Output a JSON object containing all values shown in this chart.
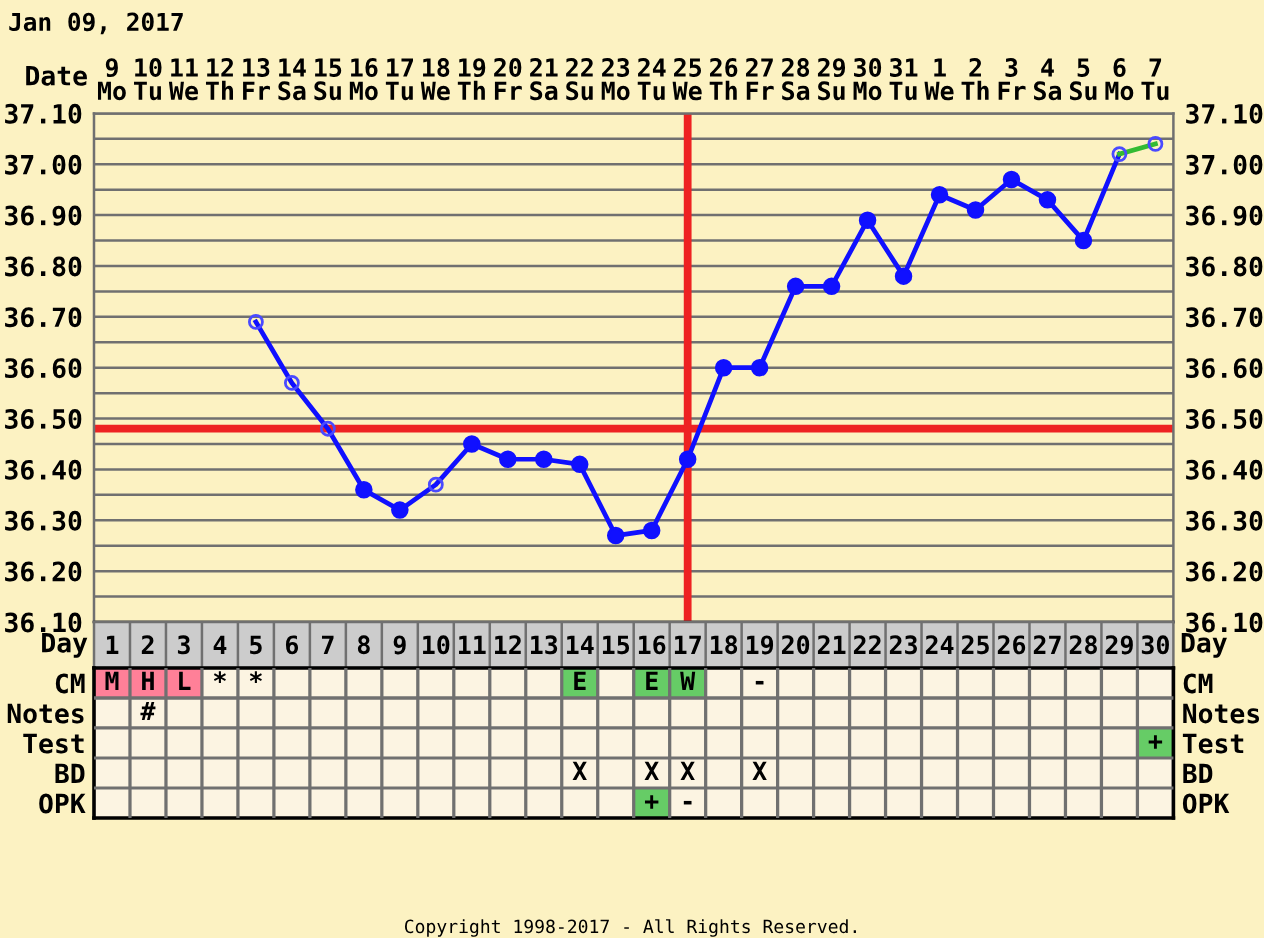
{
  "chart_data": [
    {
      "type": "line",
      "title": "Jan 09, 2017",
      "xlabel": "Date",
      "categories": [
        "9\nMo",
        "10\nTu",
        "11\nWe",
        "12\nTh",
        "13\nFr",
        "14\nSa",
        "15\nSu",
        "16\nMo",
        "17\nTu",
        "18\nWe",
        "19\nTh",
        "20\nFr",
        "21\nSa",
        "22\nSu",
        "23\nMo",
        "24\nTu",
        "25\nWe",
        "26\nTh",
        "27\nFr",
        "28\nSa",
        "29\nSu",
        "30\nMo",
        "31\nTu",
        "1\nWe",
        "2\nTh",
        "3\nFr",
        "4\nSa",
        "5\nSu",
        "6\nMo",
        "7\nTu"
      ],
      "series": [
        {
          "type": "line",
          "color": "#1010ff",
          "marker": "none",
          "values": [
            null,
            null,
            null,
            null,
            36.69,
            36.57,
            36.48,
            36.36,
            null,
            null,
            null,
            null,
            null,
            null,
            null,
            null,
            null,
            null,
            null,
            null,
            null,
            null,
            null,
            null,
            null,
            null,
            null,
            36.85,
            37.02,
            null
          ]
        },
        {
          "type": "line",
          "color": "#1010ff",
          "marker": "none",
          "values": [
            null,
            null,
            null,
            null,
            null,
            null,
            null,
            null,
            36.32,
            36.37,
            36.45,
            null,
            null,
            null,
            null,
            null,
            null,
            null,
            null,
            null,
            null,
            null,
            null,
            null,
            null,
            null,
            null,
            null,
            null,
            null
          ]
        },
        {
          "type": "line",
          "color": "#1010ff",
          "marker": "circle",
          "values": [
            null,
            null,
            null,
            null,
            null,
            null,
            null,
            36.36,
            36.32,
            null,
            36.45,
            36.42,
            36.42,
            36.41,
            36.27,
            36.28,
            36.42,
            36.6,
            36.6,
            36.76,
            36.76,
            36.89,
            36.78,
            36.94,
            36.91,
            36.97,
            36.93,
            36.85,
            null,
            null
          ]
        },
        {
          "type": "line",
          "color": "#33bb33",
          "marker": "none",
          "values": [
            null,
            null,
            null,
            null,
            null,
            null,
            null,
            null,
            null,
            null,
            null,
            null,
            null,
            null,
            null,
            null,
            null,
            null,
            null,
            null,
            null,
            null,
            null,
            null,
            null,
            null,
            null,
            null,
            37.02,
            37.04
          ]
        },
        {
          "type": "scatter",
          "color": "#4a4aff",
          "marker": "circle",
          "values": [
            null,
            null,
            null,
            null,
            36.69,
            36.57,
            36.48,
            null,
            null,
            36.37,
            null,
            null,
            null,
            null,
            null,
            null,
            null,
            null,
            null,
            null,
            null,
            null,
            null,
            null,
            null,
            null,
            null,
            null,
            37.02,
            37.04
          ]
        }
      ],
      "ylim": [
        36.1,
        37.1
      ],
      "yticks": [
        {
          "value": 36.1,
          "label": "36.10"
        },
        {
          "value": 36.15,
          "label": null
        },
        {
          "value": 36.2,
          "label": "36.20"
        },
        {
          "value": 36.25,
          "label": null
        },
        {
          "value": 36.3,
          "label": "36.30"
        },
        {
          "value": 36.35,
          "label": null
        },
        {
          "value": 36.4,
          "label": "36.40"
        },
        {
          "value": 36.45,
          "label": null
        },
        {
          "value": 36.5,
          "label": "36.50"
        },
        {
          "value": 36.55,
          "label": null
        },
        {
          "value": 36.6,
          "label": "36.60"
        },
        {
          "value": 36.65,
          "label": null
        },
        {
          "value": 36.7,
          "label": "36.70"
        },
        {
          "value": 36.75,
          "label": null
        },
        {
          "value": 36.8,
          "label": "36.80"
        },
        {
          "value": 36.85,
          "label": null
        },
        {
          "value": 36.9,
          "label": "36.90"
        },
        {
          "value": 36.95,
          "label": null
        },
        {
          "value": 37.0,
          "label": "37.00"
        },
        {
          "value": 37.05,
          "label": null
        },
        {
          "value": 37.1,
          "label": "37.10"
        }
      ],
      "y2lim": [
        36.1,
        37.1
      ],
      "y2ticks": [
        {
          "value": 36.1,
          "label": "36.10"
        },
        {
          "value": 36.15,
          "label": null
        },
        {
          "value": 36.2,
          "label": "36.20"
        },
        {
          "value": 36.25,
          "label": null
        },
        {
          "value": 36.3,
          "label": "36.30"
        },
        {
          "value": 36.35,
          "label": null
        },
        {
          "value": 36.4,
          "label": "36.40"
        },
        {
          "value": 36.45,
          "label": null
        },
        {
          "value": 36.5,
          "label": "36.50"
        },
        {
          "value": 36.55,
          "label": null
        },
        {
          "value": 36.6,
          "label": "36.60"
        },
        {
          "value": 36.65,
          "label": null
        },
        {
          "value": 36.7,
          "label": "36.70"
        },
        {
          "value": 36.75,
          "label": null
        },
        {
          "value": 36.8,
          "label": "36.80"
        },
        {
          "value": 36.85,
          "label": null
        },
        {
          "value": 36.9,
          "label": "36.90"
        },
        {
          "value": 36.95,
          "label": null
        },
        {
          "value": 37.0,
          "label": "37.00"
        },
        {
          "value": 37.05,
          "label": null
        },
        {
          "value": 37.1,
          "label": "37.10"
        }
      ],
      "ref_lines": [
        {
          "axis": "y",
          "value": 36.48,
          "color": "#ee2222"
        },
        {
          "axis": "x",
          "value": "25\nWe",
          "color": "#ee2222"
        }
      ],
      "grid": true
    },
    {
      "type": "heatmap",
      "xlabel": "Day",
      "grid": true,
      "categories": [
        "1",
        "2",
        "3",
        "4",
        "5",
        "6",
        "7",
        "8",
        "9",
        "10",
        "11",
        "12",
        "13",
        "14",
        "15",
        "16",
        "17",
        "18",
        "19",
        "20",
        "21",
        "22",
        "23",
        "24",
        "25",
        "26",
        "27",
        "28",
        "29",
        "30"
      ],
      "y_categories": [
        "CM",
        "Notes",
        "Test",
        "BD",
        "OPK"
      ],
      "y2_categories": [
        "CM",
        "Notes",
        "Test",
        "BD",
        "OPK"
      ],
      "cells": [
        [
          null,
          null,
          null,
          null,
          null,
          null,
          null,
          null,
          null,
          null,
          null,
          null,
          null,
          null,
          null,
          null,
          null,
          null,
          null,
          null,
          null,
          null,
          null,
          null,
          null,
          null,
          null,
          null,
          null,
          null
        ],
        [
          null,
          null,
          null,
          null,
          null,
          null,
          null,
          null,
          null,
          null,
          null,
          null,
          null,
          null,
          null,
          null,
          null,
          null,
          null,
          null,
          null,
          null,
          null,
          null,
          null,
          null,
          null,
          null,
          null,
          null
        ],
        [
          null,
          null,
          null,
          null,
          null,
          null,
          null,
          null,
          null,
          null,
          null,
          null,
          null,
          null,
          null,
          null,
          null,
          null,
          null,
          null,
          null,
          null,
          null,
          null,
          null,
          null,
          null,
          null,
          null,
          null
        ],
        [
          null,
          null,
          null,
          null,
          null,
          null,
          null,
          null,
          null,
          null,
          null,
          null,
          null,
          null,
          null,
          null,
          null,
          null,
          null,
          null,
          null,
          null,
          null,
          null,
          null,
          null,
          null,
          null,
          null,
          null
        ],
        [
          null,
          null,
          null,
          null,
          null,
          null,
          null,
          null,
          null,
          null,
          null,
          null,
          null,
          null,
          null,
          null,
          null,
          null,
          null,
          null,
          null,
          null,
          null,
          null,
          null,
          null,
          null,
          null,
          null,
          null
        ]
      ],
      "cell_labels": [
        [
          "M",
          "H",
          "L",
          "*",
          "*",
          null,
          null,
          null,
          null,
          null,
          null,
          null,
          null,
          "E",
          null,
          "E",
          "W",
          null,
          "-",
          null,
          null,
          null,
          null,
          null,
          null,
          null,
          null,
          null,
          null,
          null
        ],
        [
          null,
          "#",
          null,
          null,
          null,
          null,
          null,
          null,
          null,
          null,
          null,
          null,
          null,
          null,
          null,
          null,
          null,
          null,
          null,
          null,
          null,
          null,
          null,
          null,
          null,
          null,
          null,
          null,
          null,
          null
        ],
        [
          null,
          null,
          null,
          null,
          null,
          null,
          null,
          null,
          null,
          null,
          null,
          null,
          null,
          null,
          null,
          null,
          null,
          null,
          null,
          null,
          null,
          null,
          null,
          null,
          null,
          null,
          null,
          null,
          null,
          "+"
        ],
        [
          null,
          null,
          null,
          null,
          null,
          null,
          null,
          null,
          null,
          null,
          null,
          null,
          null,
          "X",
          null,
          "X",
          "X",
          null,
          "X",
          null,
          null,
          null,
          null,
          null,
          null,
          null,
          null,
          null,
          null,
          null
        ],
        [
          null,
          null,
          null,
          null,
          null,
          null,
          null,
          null,
          null,
          null,
          null,
          null,
          null,
          null,
          null,
          "+",
          "-",
          null,
          null,
          null,
          null,
          null,
          null,
          null,
          null,
          null,
          null,
          null,
          null,
          null
        ]
      ],
      "colors": [
        [
          "#ff8098",
          "#ff8098",
          "#ff8098",
          null,
          null,
          null,
          null,
          null,
          null,
          null,
          null,
          null,
          null,
          "#66cc66",
          null,
          "#66cc66",
          "#66cc66",
          null,
          null,
          null,
          null,
          null,
          null,
          null,
          null,
          null,
          null,
          null,
          null,
          null
        ],
        [
          null,
          null,
          null,
          null,
          null,
          null,
          null,
          null,
          null,
          null,
          null,
          null,
          null,
          null,
          null,
          null,
          null,
          null,
          null,
          null,
          null,
          null,
          null,
          null,
          null,
          null,
          null,
          null,
          null,
          null
        ],
        [
          null,
          null,
          null,
          null,
          null,
          null,
          null,
          null,
          null,
          null,
          null,
          null,
          null,
          null,
          null,
          null,
          null,
          null,
          null,
          null,
          null,
          null,
          null,
          null,
          null,
          null,
          null,
          null,
          null,
          "#66cc66"
        ],
        [
          null,
          null,
          null,
          null,
          null,
          null,
          null,
          null,
          null,
          null,
          null,
          null,
          null,
          null,
          null,
          null,
          null,
          null,
          null,
          null,
          null,
          null,
          null,
          null,
          null,
          null,
          null,
          null,
          null,
          null
        ],
        [
          null,
          null,
          null,
          null,
          null,
          null,
          null,
          null,
          null,
          null,
          null,
          null,
          null,
          null,
          null,
          "#66cc66",
          null,
          null,
          null,
          null,
          null,
          null,
          null,
          null,
          null,
          null,
          null,
          null,
          null,
          null
        ]
      ],
      "annotations": [
        "Copyright 1998-2017 - All Rights Reserved."
      ]
    }
  ]
}
